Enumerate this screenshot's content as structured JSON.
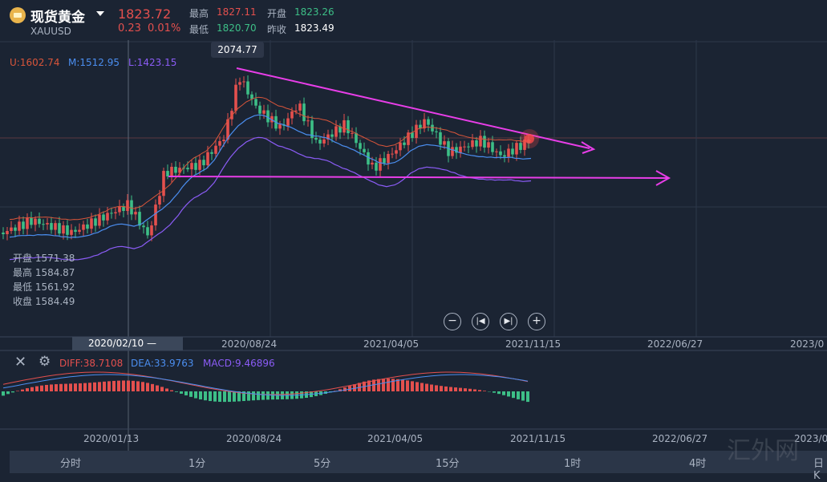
{
  "header": {
    "title": "现货黄金",
    "symbol": "XAUUSD",
    "price": "1823.72",
    "change": "0.23",
    "change_pct": "0.01%",
    "high_label": "最高",
    "high_value": "1827.11",
    "open_label": "开盘",
    "open_value": "1823.26",
    "low_label": "最低",
    "low_value": "1820.70",
    "prev_label": "昨收",
    "prev_value": "1823.49"
  },
  "indicators": {
    "upper": "U:1602.74",
    "middle": "M:1512.95",
    "lower": "L:1423.15"
  },
  "tooltip_value": "2074.77",
  "candle_info": {
    "open": "开盘 1571.38",
    "high": "最高 1584.87",
    "low": "最低 1561.92",
    "close": "收盘 1584.49"
  },
  "crosshair_date": "2020/02/10 —",
  "x_axis_main": [
    "2020/08/24",
    "2021/04/05",
    "2021/11/15",
    "2022/06/27",
    "2023/0"
  ],
  "x_axis_macd": [
    "2020/01/13",
    "2020/08/24",
    "2021/04/05",
    "2021/11/15",
    "2022/06/27",
    "2023/0"
  ],
  "macd": {
    "diff": "DIFF:38.7108",
    "dea": "DEA:33.9763",
    "macd": "MACD:9.46896"
  },
  "timeframes": [
    "分时",
    "1分",
    "5分",
    "15分",
    "1时",
    "4时",
    "日K"
  ],
  "watermark": "汇外网",
  "colors": {
    "up": "#e4504e",
    "down": "#3dbf87",
    "boll_upper": "#d9553a",
    "boll_mid": "#4b8ef0",
    "boll_lower": "#8b5cf6",
    "trendline": "#e83ee8"
  }
}
